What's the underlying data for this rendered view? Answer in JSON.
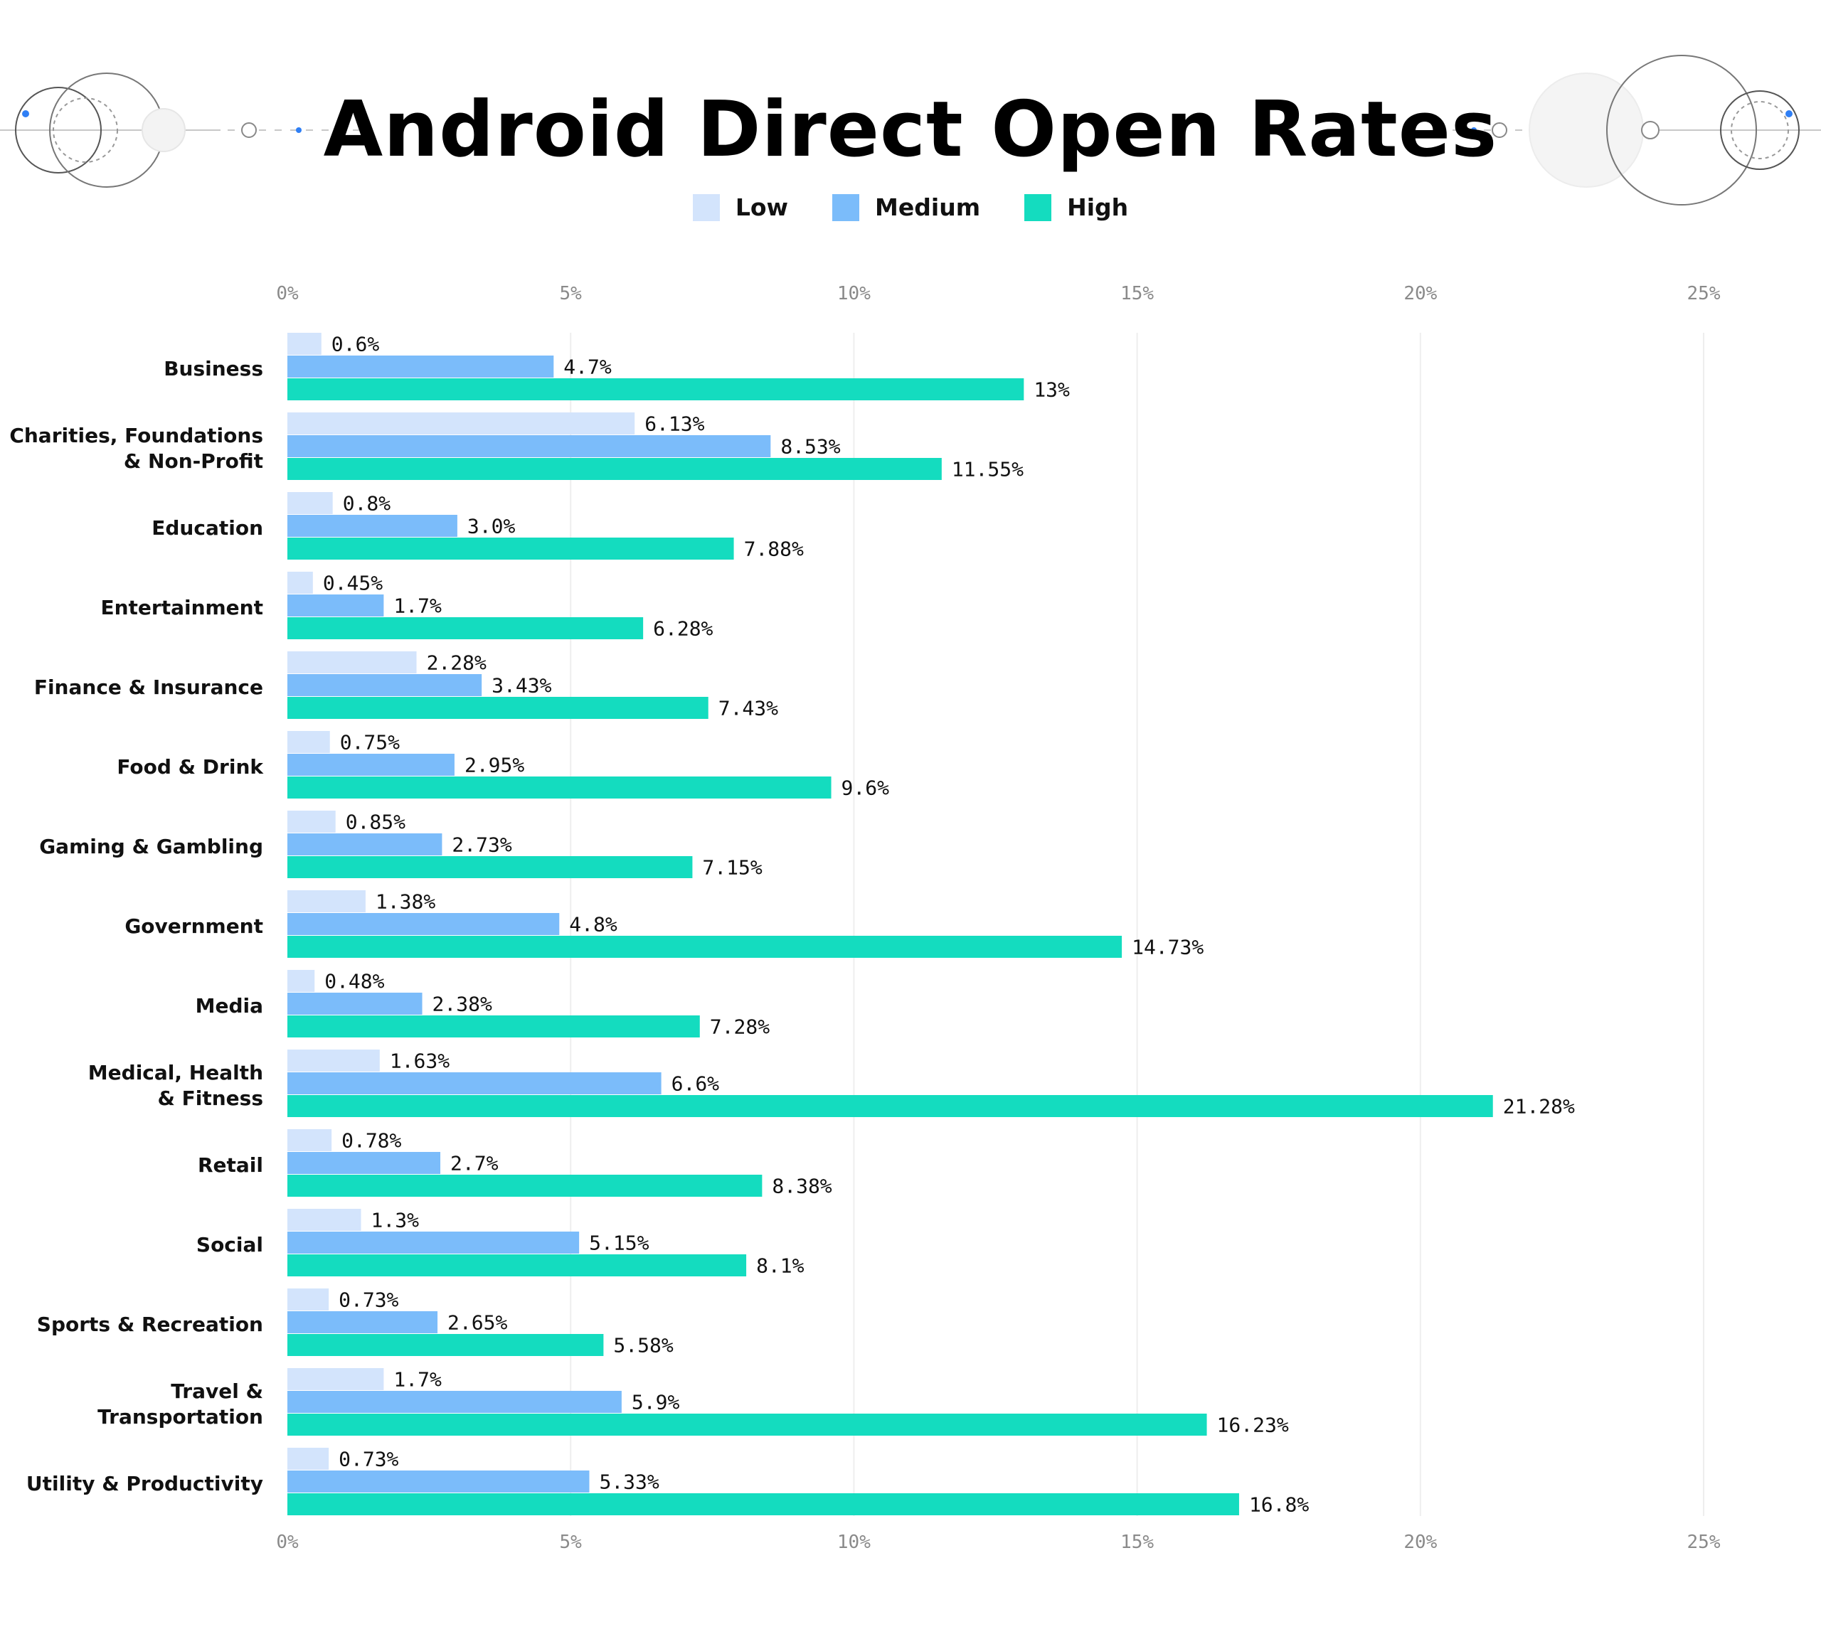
{
  "title": "Android Direct Open Rates",
  "legend": [
    {
      "label": "Low",
      "color": "#d3e4fc"
    },
    {
      "label": "Medium",
      "color": "#7bbcfa"
    },
    {
      "label": "High",
      "color": "#14dcbf"
    }
  ],
  "chart_data": {
    "type": "bar",
    "orientation": "horizontal",
    "title": "Android Direct Open Rates",
    "categories": [
      [
        "Business"
      ],
      [
        "Charities, Foundations",
        "& Non-Profit"
      ],
      [
        "Education"
      ],
      [
        "Entertainment"
      ],
      [
        "Finance & Insurance"
      ],
      [
        "Food & Drink"
      ],
      [
        "Gaming & Gambling"
      ],
      [
        "Government"
      ],
      [
        "Media"
      ],
      [
        "Medical, Health",
        "& Fitness"
      ],
      [
        "Retail"
      ],
      [
        "Social"
      ],
      [
        "Sports & Recreation"
      ],
      [
        "Travel &",
        "Transportation"
      ],
      [
        "Utility & Productivity"
      ]
    ],
    "series": [
      {
        "name": "Low",
        "color": "#d3e4fc",
        "values": [
          0.6,
          6.13,
          0.8,
          0.45,
          2.28,
          0.75,
          0.85,
          1.38,
          0.48,
          1.63,
          0.78,
          1.3,
          0.73,
          1.7,
          0.73
        ],
        "labels": [
          "0.6%",
          "6.13%",
          "0.8%",
          "0.45%",
          "2.28%",
          "0.75%",
          "0.85%",
          "1.38%",
          "0.48%",
          "1.63%",
          "0.78%",
          "1.3%",
          "0.73%",
          "1.7%",
          "0.73%"
        ]
      },
      {
        "name": "Medium",
        "color": "#7bbcfa",
        "values": [
          4.7,
          8.53,
          3.0,
          1.7,
          3.43,
          2.95,
          2.73,
          4.8,
          2.38,
          6.6,
          2.7,
          5.15,
          2.65,
          5.9,
          5.33
        ],
        "labels": [
          "4.7%",
          "8.53%",
          "3.0%",
          "1.7%",
          "3.43%",
          "2.95%",
          "2.73%",
          "4.8%",
          "2.38%",
          "6.6%",
          "2.7%",
          "5.15%",
          "2.65%",
          "5.9%",
          "5.33%"
        ]
      },
      {
        "name": "High",
        "color": "#14dcbf",
        "values": [
          13,
          11.55,
          7.88,
          6.28,
          7.43,
          9.6,
          7.15,
          14.73,
          7.28,
          21.28,
          8.38,
          8.1,
          5.58,
          16.23,
          16.8
        ],
        "labels": [
          "13%",
          "11.55%",
          "7.88%",
          "6.28%",
          "7.43%",
          "9.6%",
          "7.15%",
          "14.73%",
          "7.28%",
          "21.28%",
          "8.38%",
          "8.1%",
          "5.58%",
          "16.23%",
          "16.8%"
        ]
      }
    ],
    "x_ticks": [
      0,
      5,
      10,
      15,
      20,
      25
    ],
    "x_tick_labels": [
      "0%",
      "5%",
      "10%",
      "15%",
      "20%",
      "25%"
    ],
    "xlim": [
      0,
      25
    ],
    "axis_position": "top and bottom",
    "grid": true,
    "legend_position": "top-center"
  }
}
